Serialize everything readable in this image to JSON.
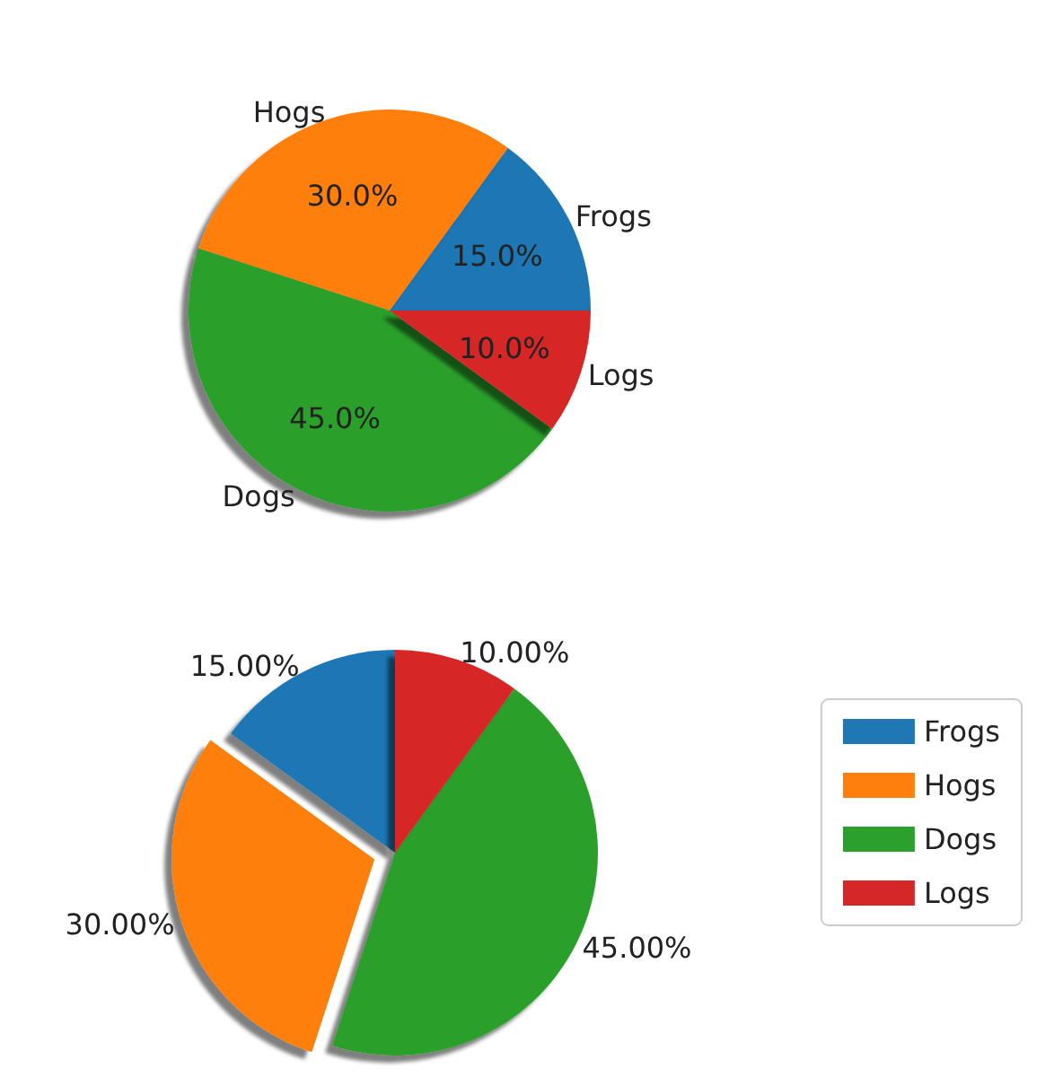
{
  "chart_data": [
    {
      "type": "pie",
      "categories": [
        "Frogs",
        "Hogs",
        "Dogs",
        "Logs"
      ],
      "values": [
        15,
        30,
        45,
        10
      ],
      "colors": [
        "#1f77b4",
        "#ff7f0e",
        "#2ca02c",
        "#d62728"
      ],
      "value_labels": [
        "15.0%",
        "30.0%",
        "45.0%",
        "10.0%"
      ],
      "legend": false
    },
    {
      "type": "pie",
      "categories": [
        "Frogs",
        "Hogs",
        "Dogs",
        "Logs"
      ],
      "values": [
        15,
        30,
        45,
        10
      ],
      "colors": [
        "#1f77b4",
        "#ff7f0e",
        "#2ca02c",
        "#d62728"
      ],
      "value_labels": [
        "15.00%",
        "30.00%",
        "45.00%",
        "10.00%"
      ],
      "legend": "right"
    }
  ]
}
